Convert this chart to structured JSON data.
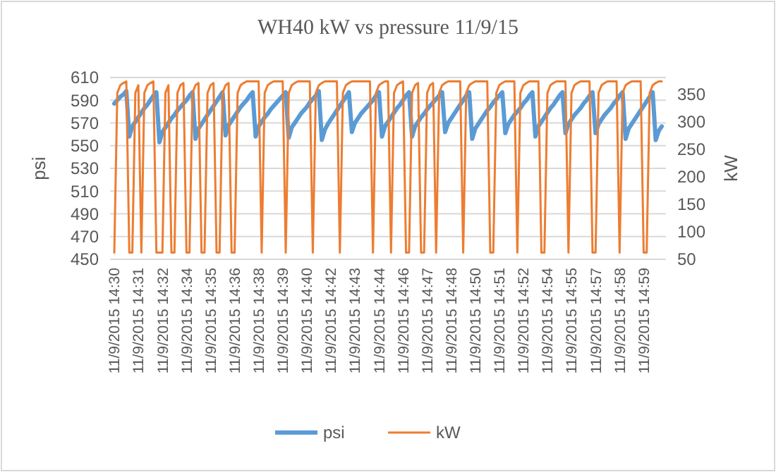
{
  "chart_data": {
    "type": "line",
    "title": "WH40 kW vs pressure 11/9/15",
    "ylabel": "psi",
    "y2label": "kW",
    "categories": [
      "11/9/2015 14:30",
      null,
      null,
      null,
      null,
      null,
      null,
      null,
      "11/9/2015 14:31",
      null,
      null,
      null,
      null,
      null,
      null,
      null,
      "11/9/2015 14:32",
      null,
      null,
      null,
      null,
      null,
      null,
      null,
      "11/9/2015 14:34",
      null,
      null,
      null,
      null,
      null,
      null,
      null,
      "11/9/2015 14:35",
      null,
      null,
      null,
      null,
      null,
      null,
      null,
      "11/9/2015 14:36",
      null,
      null,
      null,
      null,
      null,
      null,
      null,
      "11/9/2015 14:38",
      null,
      null,
      null,
      null,
      null,
      null,
      null,
      "11/9/2015 14:39",
      null,
      null,
      null,
      null,
      null,
      null,
      null,
      "11/9/2015 14:40",
      null,
      null,
      null,
      null,
      null,
      null,
      null,
      "11/9/2015 14:42",
      null,
      null,
      null,
      null,
      null,
      null,
      null,
      "11/9/2015 14:43",
      null,
      null,
      null,
      null,
      null,
      null,
      null,
      "11/9/2015 14:44",
      null,
      null,
      null,
      null,
      null,
      null,
      null,
      "11/9/2015 14:46",
      null,
      null,
      null,
      null,
      null,
      null,
      null,
      "11/9/2015 14:47",
      null,
      null,
      null,
      null,
      null,
      null,
      null,
      "11/9/2015 14:48",
      null,
      null,
      null,
      null,
      null,
      null,
      null,
      "11/9/2015 14:50",
      null,
      null,
      null,
      null,
      null,
      null,
      null,
      "11/9/2015 14:51",
      null,
      null,
      null,
      null,
      null,
      null,
      null,
      "11/9/2015 14:52",
      null,
      null,
      null,
      null,
      null,
      null,
      null,
      "11/9/2015 14:54",
      null,
      null,
      null,
      null,
      null,
      null,
      null,
      "11/9/2015 14:55",
      null,
      null,
      null,
      null,
      null,
      null,
      null,
      "11/9/2015 14:57",
      null,
      null,
      null,
      null,
      null,
      null,
      null,
      "11/9/2015 14:58",
      null,
      null,
      null,
      null,
      null,
      null,
      null,
      "11/9/2015 14:59",
      null,
      null,
      null,
      null,
      null,
      null
    ],
    "ylim": [
      450,
      610
    ],
    "yticks": [
      450,
      470,
      490,
      510,
      530,
      550,
      570,
      590,
      610
    ],
    "y2lim": [
      50,
      380
    ],
    "y2ticks": [
      50,
      100,
      150,
      200,
      250,
      300,
      350
    ],
    "grid": "y",
    "legend": "bottom",
    "marker": "none",
    "line_style": "solid",
    "series": [
      {
        "name": "psi",
        "color": "#5b9bd5",
        "values": [
          587,
          590,
          593,
          595,
          598,
          558,
          567,
          571,
          575,
          579,
          583,
          586,
          590,
          594,
          597,
          553,
          562,
          566,
          570,
          574,
          577,
          581,
          584,
          587,
          590,
          594,
          597,
          556,
          565,
          569,
          573,
          577,
          581,
          585,
          589,
          593,
          597,
          559,
          568,
          572,
          576,
          580,
          584,
          587,
          590,
          594,
          597,
          558,
          567,
          571,
          575,
          578,
          582,
          585,
          588,
          591,
          594,
          597,
          557,
          566,
          570,
          574,
          578,
          581,
          584,
          588,
          591,
          594,
          598,
          555,
          564,
          569,
          573,
          577,
          581,
          585,
          589,
          593,
          597,
          562,
          570,
          574,
          578,
          581,
          584,
          587,
          590,
          594,
          597,
          558,
          567,
          571,
          575,
          579,
          583,
          586,
          590,
          594,
          597,
          558,
          567,
          571,
          575,
          578,
          582,
          585,
          588,
          591,
          594,
          597,
          562,
          570,
          574,
          578,
          582,
          586,
          590,
          594,
          597,
          556,
          565,
          569,
          573,
          577,
          581,
          584,
          588,
          591,
          594,
          597,
          561,
          569,
          573,
          577,
          580,
          583,
          587,
          590,
          594,
          597,
          558,
          567,
          571,
          575,
          579,
          583,
          586,
          590,
          594,
          597,
          561,
          569,
          573,
          577,
          580,
          583,
          587,
          590,
          594,
          597,
          561,
          569,
          573,
          577,
          580,
          583,
          587,
          590,
          594,
          597,
          556,
          565,
          569,
          573,
          577,
          581,
          585,
          589,
          593,
          597,
          555,
          563,
          567
        ]
      },
      {
        "name": "kW",
        "color": "#ed7d31",
        "axis": "y2",
        "values": [
          62,
          352,
          366,
          370,
          373,
          62,
          62,
          352,
          366,
          62,
          352,
          366,
          370,
          373,
          62,
          62,
          62,
          352,
          366,
          62,
          62,
          352,
          366,
          370,
          62,
          62,
          352,
          366,
          370,
          62,
          62,
          352,
          366,
          370,
          62,
          62,
          352,
          366,
          370,
          62,
          62,
          352,
          366,
          370,
          373,
          373,
          373,
          373,
          373,
          62,
          352,
          366,
          370,
          373,
          373,
          373,
          373,
          62,
          352,
          366,
          370,
          373,
          373,
          373,
          373,
          373,
          62,
          352,
          366,
          370,
          373,
          373,
          373,
          373,
          373,
          62,
          352,
          366,
          370,
          373,
          373,
          373,
          373,
          373,
          373,
          373,
          62,
          352,
          366,
          370,
          373,
          373,
          62,
          352,
          366,
          370,
          373,
          62,
          62,
          352,
          366,
          370,
          62,
          62,
          352,
          366,
          370,
          62,
          352,
          366,
          370,
          373,
          373,
          373,
          373,
          373,
          62,
          352,
          366,
          370,
          373,
          373,
          373,
          373,
          373,
          62,
          62,
          352,
          366,
          370,
          373,
          373,
          373,
          373,
          62,
          352,
          366,
          370,
          373,
          373,
          373,
          373,
          62,
          62,
          352,
          366,
          370,
          373,
          373,
          373,
          373,
          62,
          352,
          366,
          370,
          373,
          373,
          373,
          373,
          62,
          62,
          352,
          366,
          370,
          373,
          373,
          373,
          373,
          62,
          352,
          366,
          370,
          373,
          373,
          373,
          373,
          62,
          62,
          352,
          366,
          370,
          373,
          373
        ]
      }
    ]
  }
}
